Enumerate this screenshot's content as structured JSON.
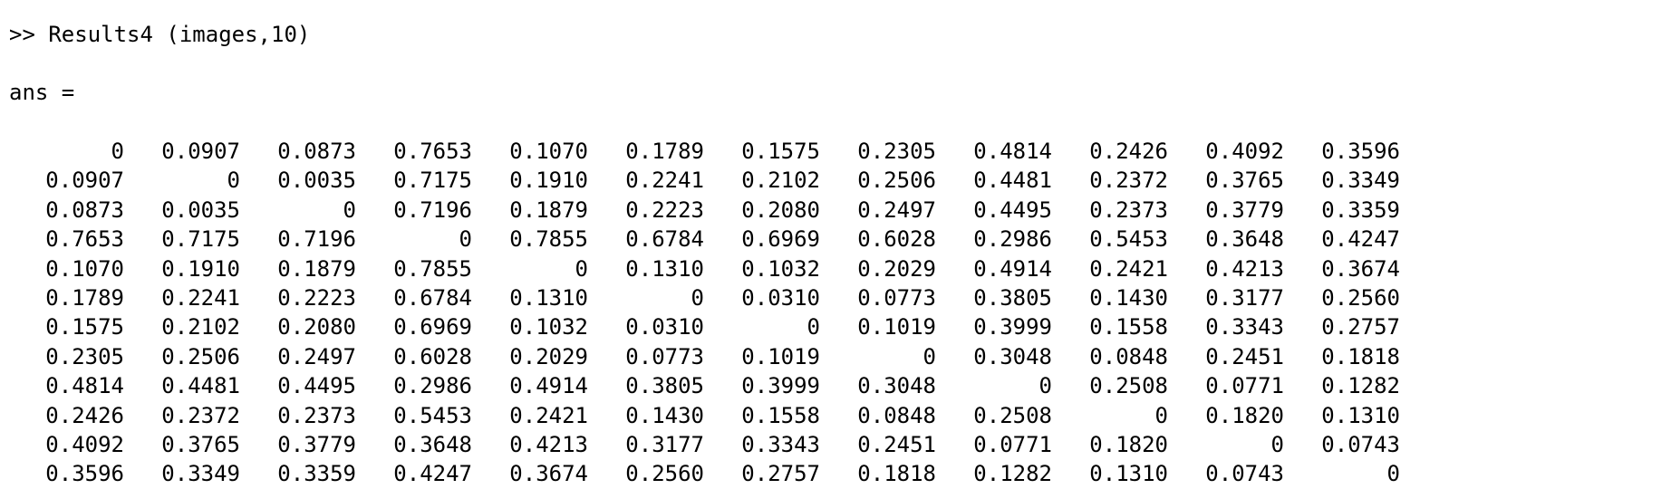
{
  "console": {
    "prompt": ">>",
    "command": "Results4 (images,10)",
    "output_var": "ans =",
    "matrix": [
      [
        "0",
        "0.0907",
        "0.0873",
        "0.7653",
        "0.1070",
        "0.1789",
        "0.1575",
        "0.2305",
        "0.4814",
        "0.2426",
        "0.4092",
        "0.3596"
      ],
      [
        "0.0907",
        "0",
        "0.0035",
        "0.7175",
        "0.1910",
        "0.2241",
        "0.2102",
        "0.2506",
        "0.4481",
        "0.2372",
        "0.3765",
        "0.3349"
      ],
      [
        "0.0873",
        "0.0035",
        "0",
        "0.7196",
        "0.1879",
        "0.2223",
        "0.2080",
        "0.2497",
        "0.4495",
        "0.2373",
        "0.3779",
        "0.3359"
      ],
      [
        "0.7653",
        "0.7175",
        "0.7196",
        "0",
        "0.7855",
        "0.6784",
        "0.6969",
        "0.6028",
        "0.2986",
        "0.5453",
        "0.3648",
        "0.4247"
      ],
      [
        "0.1070",
        "0.1910",
        "0.1879",
        "0.7855",
        "0",
        "0.1310",
        "0.1032",
        "0.2029",
        "0.4914",
        "0.2421",
        "0.4213",
        "0.3674"
      ],
      [
        "0.1789",
        "0.2241",
        "0.2223",
        "0.6784",
        "0.1310",
        "0",
        "0.0310",
        "0.0773",
        "0.3805",
        "0.1430",
        "0.3177",
        "0.2560"
      ],
      [
        "0.1575",
        "0.2102",
        "0.2080",
        "0.6969",
        "0.1032",
        "0.0310",
        "0",
        "0.1019",
        "0.3999",
        "0.1558",
        "0.3343",
        "0.2757"
      ],
      [
        "0.2305",
        "0.2506",
        "0.2497",
        "0.6028",
        "0.2029",
        "0.0773",
        "0.1019",
        "0",
        "0.3048",
        "0.0848",
        "0.2451",
        "0.1818"
      ],
      [
        "0.4814",
        "0.4481",
        "0.4495",
        "0.2986",
        "0.4914",
        "0.3805",
        "0.3999",
        "0.3048",
        "0",
        "0.2508",
        "0.0771",
        "0.1282"
      ],
      [
        "0.2426",
        "0.2372",
        "0.2373",
        "0.5453",
        "0.2421",
        "0.1430",
        "0.1558",
        "0.0848",
        "0.2508",
        "0",
        "0.1820",
        "0.1310"
      ],
      [
        "0.4092",
        "0.3765",
        "0.3779",
        "0.3648",
        "0.4213",
        "0.3177",
        "0.3343",
        "0.2451",
        "0.0771",
        "0.1820",
        "0",
        "0.0743"
      ],
      [
        "0.3596",
        "0.3349",
        "0.3359",
        "0.4247",
        "0.3674",
        "0.2560",
        "0.2757",
        "0.1818",
        "0.1282",
        "0.1310",
        "0.0743",
        "0"
      ]
    ]
  },
  "colors": {
    "background": "#ffffff",
    "text": "#000000"
  }
}
